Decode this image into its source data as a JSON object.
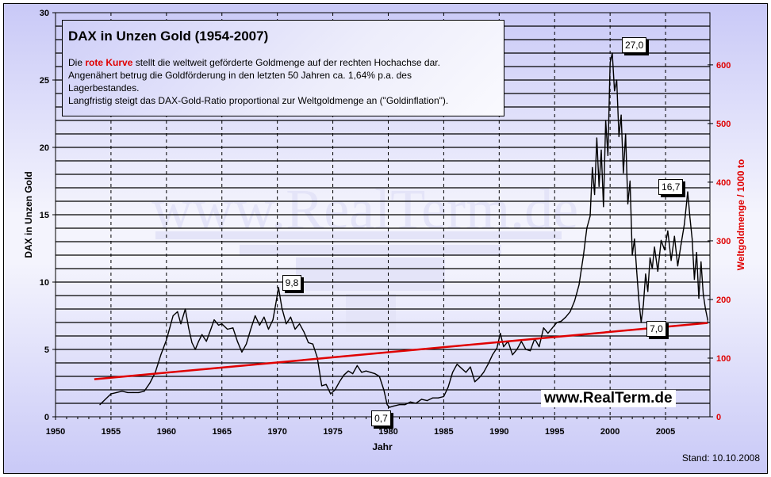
{
  "chart_data": {
    "type": "line",
    "title": "DAX in Unzen Gold   (1954-2007)",
    "xlabel": "Jahr",
    "ylabel": "DAX in Unzen Gold",
    "y2label": "Weltgoldmenge / 1000 to",
    "xlim": [
      1950,
      2009
    ],
    "ylim": [
      0,
      30
    ],
    "y2lim": [
      0,
      689
    ],
    "x_ticks": [
      "1950",
      "1955",
      "1960",
      "1965",
      "1970",
      "1975",
      "1980",
      "1985",
      "1990",
      "1995",
      "2000",
      "2005"
    ],
    "y_ticks": [
      "0",
      "5",
      "10",
      "15",
      "20",
      "25",
      "30"
    ],
    "y2_ticks": [
      "0",
      "100",
      "200",
      "300",
      "400",
      "500",
      "600"
    ],
    "grid": "horizontal solid lines every 1 unit, vertical dashed lines every 5 years",
    "series": [
      {
        "name": "DAX in Unzen Gold",
        "color": "#000000",
        "axis": "left",
        "x": [
          1954.0,
          1954.5,
          1955.0,
          1955.5,
          1956.0,
          1956.5,
          1957.0,
          1957.5,
          1958.0,
          1958.5,
          1959.0,
          1959.5,
          1960.0,
          1960.3,
          1960.6,
          1961.0,
          1961.3,
          1961.7,
          1962.0,
          1962.3,
          1962.6,
          1962.9,
          1963.2,
          1963.6,
          1964.0,
          1964.3,
          1964.7,
          1965.0,
          1965.5,
          1966.0,
          1966.4,
          1966.8,
          1967.2,
          1967.6,
          1968.0,
          1968.4,
          1968.8,
          1969.2,
          1969.6,
          1969.9,
          1970.1,
          1970.4,
          1970.8,
          1971.2,
          1971.6,
          1972.0,
          1972.4,
          1972.8,
          1973.2,
          1973.6,
          1974.0,
          1974.4,
          1974.8,
          1975.2,
          1975.6,
          1976.0,
          1976.4,
          1976.8,
          1977.2,
          1977.6,
          1978.0,
          1978.4,
          1978.8,
          1979.2,
          1979.6,
          1979.9,
          1980.1,
          1980.5,
          1981.0,
          1981.5,
          1982.0,
          1982.5,
          1983.0,
          1983.5,
          1984.0,
          1984.5,
          1985.0,
          1985.4,
          1985.8,
          1986.2,
          1986.6,
          1987.0,
          1987.4,
          1987.8,
          1988.2,
          1988.6,
          1989.0,
          1989.4,
          1989.8,
          1990.1,
          1990.4,
          1990.8,
          1991.2,
          1991.6,
          1992.0,
          1992.4,
          1992.8,
          1993.2,
          1993.6,
          1994.0,
          1994.4,
          1994.8,
          1995.2,
          1995.6,
          1996.0,
          1996.4,
          1996.8,
          1997.2,
          1997.6,
          1997.9,
          1998.2,
          1998.4,
          1998.6,
          1998.8,
          1999.0,
          1999.2,
          1999.4,
          1999.6,
          1999.8,
          2000.0,
          2000.2,
          2000.4,
          2000.6,
          2000.8,
          2001.0,
          2001.2,
          2001.4,
          2001.6,
          2001.8,
          2002.0,
          2002.2,
          2002.4,
          2002.6,
          2002.8,
          2003.0,
          2003.2,
          2003.4,
          2003.6,
          2003.8,
          2004.0,
          2004.3,
          2004.6,
          2004.9,
          2005.2,
          2005.5,
          2005.8,
          2006.1,
          2006.4,
          2006.7,
          2007.0,
          2007.2,
          2007.4,
          2007.6,
          2007.8,
          2008.0,
          2008.2,
          2008.4,
          2008.6,
          2008.8
        ],
        "values": [
          0.9,
          1.3,
          1.7,
          1.8,
          1.9,
          1.8,
          1.8,
          1.8,
          1.9,
          2.5,
          3.3,
          4.6,
          5.7,
          6.6,
          7.5,
          7.8,
          6.9,
          8.0,
          6.6,
          5.5,
          5.0,
          5.6,
          6.1,
          5.6,
          6.5,
          7.2,
          6.8,
          6.9,
          6.5,
          6.6,
          5.6,
          4.8,
          5.4,
          6.5,
          7.5,
          6.8,
          7.4,
          6.5,
          7.2,
          8.6,
          9.6,
          8.1,
          6.9,
          7.4,
          6.5,
          6.9,
          6.3,
          5.5,
          5.4,
          4.4,
          2.3,
          2.4,
          1.7,
          2.0,
          2.6,
          3.1,
          3.4,
          3.2,
          3.8,
          3.3,
          3.4,
          3.3,
          3.2,
          3.0,
          2.0,
          0.9,
          0.7,
          0.8,
          0.9,
          0.9,
          1.1,
          1.0,
          1.3,
          1.2,
          1.4,
          1.4,
          1.5,
          2.2,
          3.3,
          3.9,
          3.6,
          3.3,
          3.7,
          2.6,
          2.9,
          3.3,
          3.9,
          4.6,
          5.1,
          6.2,
          5.2,
          5.6,
          4.6,
          5.0,
          5.6,
          5.0,
          4.9,
          5.8,
          5.2,
          6.6,
          6.2,
          6.6,
          7.0,
          7.1,
          7.4,
          7.8,
          8.6,
          9.8,
          12.0,
          14.0,
          14.9,
          18.5,
          16.5,
          20.7,
          17.1,
          19.8,
          15.6,
          22.0,
          19.4,
          26.3,
          27.0,
          24.2,
          25.0,
          20.8,
          22.4,
          18.1,
          21.0,
          15.8,
          17.5,
          12.0,
          13.2,
          10.8,
          8.6,
          7.0,
          8.3,
          10.6,
          9.3,
          11.8,
          11.0,
          12.6,
          10.8,
          13.1,
          12.4,
          13.8,
          11.6,
          13.4,
          11.2,
          12.8,
          14.3,
          16.7,
          14.8,
          13.2,
          10.2,
          12.2,
          8.8,
          11.5,
          9.1,
          8.0,
          7.2
        ],
        "annotations": [
          {
            "label": "9,8",
            "x": 1970.0,
            "y": 9.8
          },
          {
            "label": "0,7",
            "x": 1979.9,
            "y": 0.7
          },
          {
            "label": "27,0",
            "x": 2000.2,
            "y": 27.0
          },
          {
            "label": "7,0",
            "x": 2003.0,
            "y": 7.0
          },
          {
            "label": "16,7",
            "x": 2007.5,
            "y": 16.7
          }
        ]
      },
      {
        "name": "Weltgoldmenge (rote Kurve)",
        "color": "#e00000",
        "axis": "right",
        "x": [
          1953.5,
          2008.8
        ],
        "values": [
          64,
          160
        ]
      }
    ]
  },
  "infobox": {
    "title": "DAX in Unzen Gold   (1954-2007)",
    "line1_prefix": "Die ",
    "line1_highlight": "rote Kurve",
    "line1_suffix": " stellt die weltweit geförderte Goldmenge auf der rechten Hochachse dar.",
    "line2": "Angenähert betrug die Goldförderung in den letzten 50 Jahren ca. 1,64% p.a. des",
    "line3": "Lagerbestandes.",
    "line4": "Langfristig steigt das DAX-Gold-Ratio proportional zur Weltgoldmenge an (\"Goldinflation\")."
  },
  "watermark": "www.RealTerm.de",
  "brand": "www.RealTerm.de",
  "stand": "Stand: 10.10.2008",
  "colors": {
    "dax": "#000000",
    "gold": "#e00000",
    "background": "#c9c9f7"
  }
}
